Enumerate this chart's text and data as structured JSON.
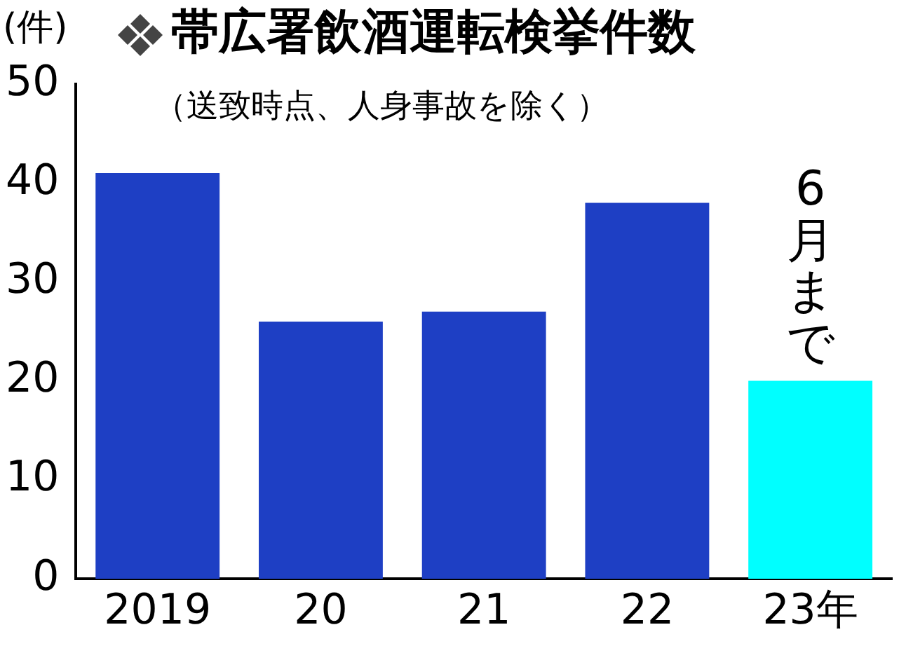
{
  "chart_data": {
    "type": "bar",
    "title": "帯広署飲酒運転検挙件数",
    "subtitle": "（送致時点、人身事故を除く）",
    "ylabel": "(件)",
    "categories": [
      "2019",
      "20",
      "21",
      "22",
      "23年"
    ],
    "values": [
      41,
      26,
      27,
      38,
      20
    ],
    "colors": [
      "#1e3fc4",
      "#1e3fc4",
      "#1e3fc4",
      "#1e3fc4",
      "#00ffff"
    ],
    "ylim": [
      0,
      50
    ],
    "yticks": [
      0,
      10,
      20,
      30,
      40,
      50
    ],
    "grid": false,
    "legend": false,
    "annotations": [
      {
        "text": "6月まで",
        "x": "23年",
        "y": 20
      }
    ]
  }
}
